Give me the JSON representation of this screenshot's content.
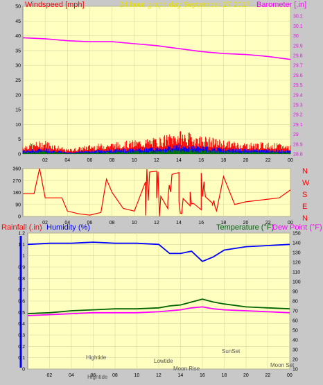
{
  "header": {
    "left_label": "Windspeed [mph]",
    "center_label": "24 hour graph day   September 27 2017",
    "right_label": "Barometer [.in]"
  },
  "compass": [
    "N",
    "W",
    "S",
    "E",
    "N"
  ],
  "middle_header": {
    "rain_label": "Rainfall (.in)",
    "humidity_label": "Humidity (%)",
    "temp_label": "Temperature (°F)",
    "dew_label": "Dew Point (°F)"
  },
  "x_ticks": [
    "02",
    "04",
    "06",
    "08",
    "10",
    "12",
    "14",
    "16",
    "18",
    "20",
    "22",
    "00"
  ],
  "colors": {
    "plot_bg": "#ffffc0",
    "page_bg": "#c8c8c8",
    "wind": "#ff0000",
    "gust_blue": "#0000ff",
    "gust_green": "#008000",
    "barometer": "#ff00ff",
    "humidity": "#0000ff",
    "temperature": "#006400",
    "dewpoint": "#ff00ff",
    "rain": "#0000ff"
  },
  "annotations": [
    "Hightide",
    "Lowtide",
    "Moon Rise",
    "SunSet",
    "Moon Set",
    "Hightide"
  ],
  "chart_data": [
    {
      "type": "line",
      "title": "",
      "ylabel": "Windspeed [mph]",
      "ylabel_right": "Barometer [.in]",
      "ylim": [
        0,
        50
      ],
      "ylim_right": [
        28.8,
        30.3
      ],
      "y_ticks": [
        0,
        5,
        10,
        15,
        20,
        25,
        30,
        35,
        40,
        45,
        50
      ],
      "y_ticks_right": [
        "28.8",
        "28.9",
        "29",
        "29.1",
        "29.2",
        "29.3",
        "29.4",
        "29.5",
        "29.6",
        "29.7",
        "29.8",
        "29.9",
        "30",
        "30.1",
        "30.2"
      ],
      "x_hours": [
        0,
        2,
        4,
        6,
        8,
        10,
        12,
        14,
        16,
        18,
        20,
        22,
        24
      ],
      "series": [
        {
          "name": "Barometer [.in]",
          "axis": "right",
          "values": [
            29.98,
            29.97,
            29.95,
            29.94,
            29.94,
            29.92,
            29.9,
            29.87,
            29.84,
            29.82,
            29.81,
            29.79,
            29.76
          ]
        },
        {
          "name": "Windspeed [mph]",
          "axis": "left",
          "values": [
            2,
            3,
            1,
            2,
            2.5,
            3,
            3.5,
            5,
            4,
            3,
            2.5,
            2.5,
            2
          ]
        }
      ]
    },
    {
      "type": "line",
      "title": "",
      "ylim": [
        0,
        360
      ],
      "y_ticks": [
        0,
        90,
        180,
        270,
        360
      ],
      "x_hours": [
        0,
        1,
        1.5,
        2,
        2.5,
        3,
        3.5,
        4,
        5,
        6,
        7,
        7.5,
        8,
        9,
        10,
        11,
        12,
        13,
        14,
        15,
        16,
        17,
        18,
        19,
        20,
        21,
        22,
        23,
        24
      ],
      "series": [
        {
          "name": "Wind direction",
          "values": [
            170,
            170,
            360,
            140,
            140,
            140,
            140,
            40,
            20,
            10,
            30,
            280,
            180,
            60,
            40,
            260,
            340,
            60,
            330,
            80,
            50,
            100,
            300,
            90,
            110,
            120,
            130,
            140,
            200
          ]
        }
      ]
    },
    {
      "type": "line",
      "title": "",
      "ylabel": "Humidity (%)",
      "ylim": [
        0,
        1.2
      ],
      "ylim_right": [
        10,
        150
      ],
      "y_ticks": [
        "0",
        "0.1",
        "0.2",
        "0.3",
        "0.4",
        "0.5",
        "0.6",
        "0.7",
        "0.8",
        "0.9",
        "1",
        "1.1",
        "1.2"
      ],
      "y_ticks_right": [
        10,
        20,
        30,
        40,
        50,
        60,
        70,
        80,
        90,
        100,
        110,
        120,
        130,
        140,
        150
      ],
      "x_hours": [
        0,
        2,
        4,
        6,
        8,
        10,
        12,
        13,
        14,
        15,
        16,
        17,
        18,
        20,
        22,
        24
      ],
      "series": [
        {
          "name": "Humidity (%)",
          "axis": "left",
          "values": [
            1.1,
            1.11,
            1.11,
            1.12,
            1.11,
            1.11,
            1.1,
            1.02,
            1.02,
            1.04,
            0.95,
            0.99,
            1.05,
            1.08,
            1.09,
            1.1
          ]
        },
        {
          "name": "Temperature (°F)",
          "axis": "right",
          "values": [
            67,
            68,
            70,
            71,
            72,
            72,
            73,
            75,
            76,
            79,
            82,
            79,
            77,
            74,
            73,
            72
          ]
        },
        {
          "name": "Dew Point (°F)",
          "axis": "right",
          "values": [
            65,
            66,
            67,
            68,
            68,
            68,
            69,
            70,
            71,
            73,
            74,
            72,
            71,
            70,
            69,
            68
          ]
        }
      ]
    }
  ]
}
